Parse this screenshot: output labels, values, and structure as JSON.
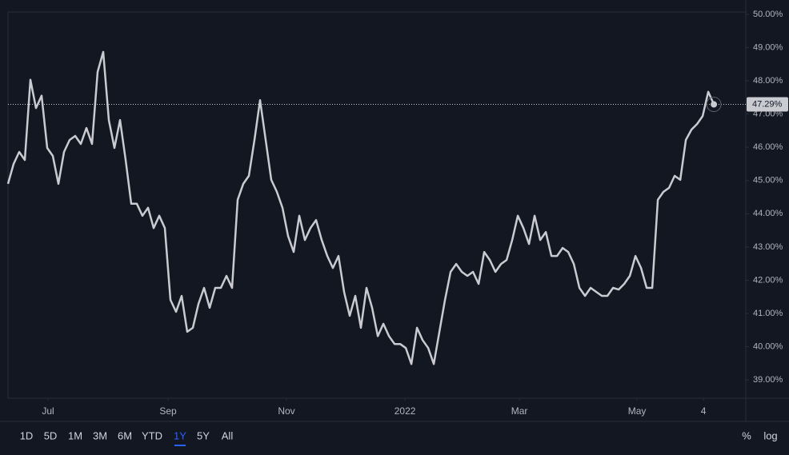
{
  "chart_data": {
    "type": "line",
    "color": "#c9cbd1",
    "values": [
      44.9,
      45.5,
      45.86,
      45.62,
      48.03,
      47.18,
      47.55,
      45.98,
      45.74,
      44.9,
      45.86,
      46.22,
      46.34,
      46.1,
      46.58,
      46.1,
      48.27,
      48.87,
      46.82,
      45.98,
      46.82,
      45.62,
      44.3,
      44.3,
      43.94,
      44.18,
      43.57,
      43.94,
      43.57,
      41.41,
      41.05,
      41.53,
      40.45,
      40.57,
      41.29,
      41.77,
      41.17,
      41.77,
      41.77,
      42.13,
      41.77,
      44.42,
      44.9,
      45.14,
      46.22,
      47.42,
      46.22,
      45.02,
      44.66,
      44.18,
      43.33,
      42.85,
      43.94,
      43.21,
      43.57,
      43.81,
      43.21,
      42.73,
      42.37,
      42.73,
      41.65,
      40.93,
      41.53,
      40.57,
      41.77,
      41.17,
      40.32,
      40.69,
      40.32,
      40.08,
      40.08,
      39.96,
      39.48,
      40.57,
      40.2,
      39.96,
      39.48,
      40.45,
      41.41,
      42.25,
      42.49,
      42.25,
      42.13,
      42.25,
      41.89,
      42.85,
      42.61,
      42.25,
      42.49,
      42.61,
      43.21,
      43.94,
      43.57,
      43.09,
      43.94,
      43.21,
      43.45,
      42.73,
      42.73,
      42.97,
      42.85,
      42.49,
      41.77,
      41.53,
      41.77,
      41.65,
      41.53,
      41.53,
      41.77,
      41.72,
      41.89,
      42.13,
      42.73,
      42.37,
      41.77,
      41.77,
      44.42,
      44.66,
      44.78,
      45.14,
      45.02,
      46.22,
      46.53,
      46.7,
      46.94,
      47.67,
      47.29
    ],
    "last_value_label": "47.29%",
    "xlim": [
      0,
      131.7
    ],
    "xticks": [
      {
        "value": 7.14,
        "label": "Jul"
      },
      {
        "value": 28.57,
        "label": "Sep"
      },
      {
        "value": 49.71,
        "label": "Nov"
      },
      {
        "value": 70.86,
        "label": "2022"
      },
      {
        "value": 91.29,
        "label": "Mar"
      },
      {
        "value": 112.29,
        "label": "May"
      },
      {
        "value": 124.14,
        "label": "4"
      }
    ],
    "ylim": [
      38.45,
      50.07
    ],
    "yticks": [
      {
        "value": 39,
        "label": "39.00%"
      },
      {
        "value": 40,
        "label": "40.00%"
      },
      {
        "value": 41,
        "label": "41.00%"
      },
      {
        "value": 42,
        "label": "42.00%"
      },
      {
        "value": 43,
        "label": "43.00%"
      },
      {
        "value": 44,
        "label": "44.00%"
      },
      {
        "value": 45,
        "label": "45.00%"
      },
      {
        "value": 46,
        "label": "46.00%"
      },
      {
        "value": 47,
        "label": "47.00%"
      },
      {
        "value": 48,
        "label": "48.00%"
      },
      {
        "value": 49,
        "label": "49.00%"
      },
      {
        "value": 50,
        "label": "50.00%"
      }
    ],
    "grid": false
  },
  "toolbar": {
    "ranges": [
      "1D",
      "5D",
      "1M",
      "3M",
      "6M",
      "YTD",
      "1Y",
      "5Y",
      "All"
    ],
    "active": 6,
    "toggles": [
      "%",
      "log"
    ]
  }
}
